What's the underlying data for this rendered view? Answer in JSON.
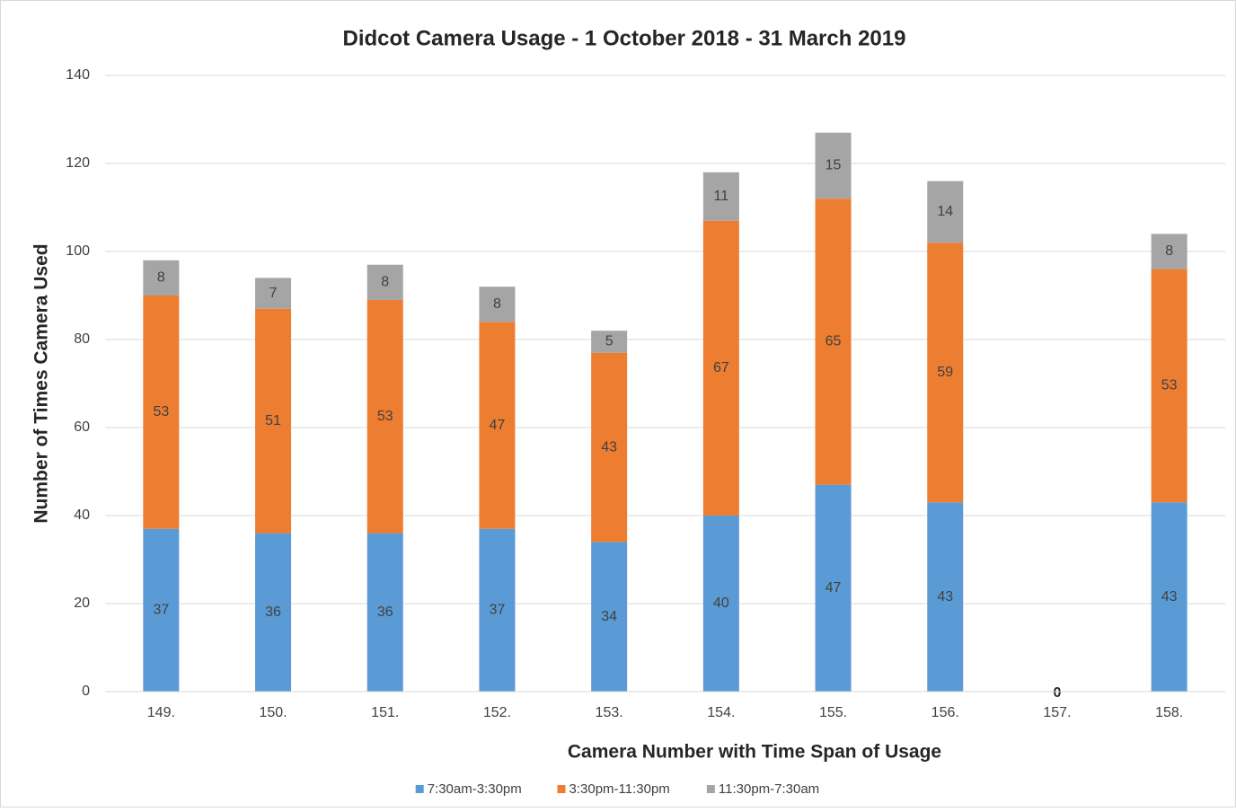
{
  "chart_data": {
    "type": "stacked_bar",
    "title": "Didcot Camera Usage - 1 October 2018 - 31 March 2019",
    "x_label": "Camera Number with Time Span of Usage",
    "y_label": "Number of Times Camera Used",
    "categories": [
      "149.",
      "150.",
      "151.",
      "152.",
      "153.",
      "154.",
      "155.",
      "156.",
      "157.",
      "158."
    ],
    "series": [
      {
        "name": "7:30am-3:30pm",
        "color": "#5b9bd5",
        "values": [
          37,
          36,
          36,
          37,
          34,
          40,
          47,
          43,
          0,
          43
        ]
      },
      {
        "name": "3:30pm-11:30pm",
        "color": "#ed7d31",
        "values": [
          53,
          51,
          53,
          47,
          43,
          67,
          65,
          59,
          null,
          53
        ]
      },
      {
        "name": "11:30pm-7:30am",
        "color": "#a5a5a5",
        "values": [
          8,
          7,
          8,
          8,
          5,
          11,
          15,
          14,
          null,
          8
        ]
      }
    ],
    "ylim": [
      0,
      140
    ],
    "yticks": [
      0,
      20,
      40,
      60,
      80,
      100,
      120,
      140
    ],
    "grid": true,
    "legend": "bottom"
  }
}
